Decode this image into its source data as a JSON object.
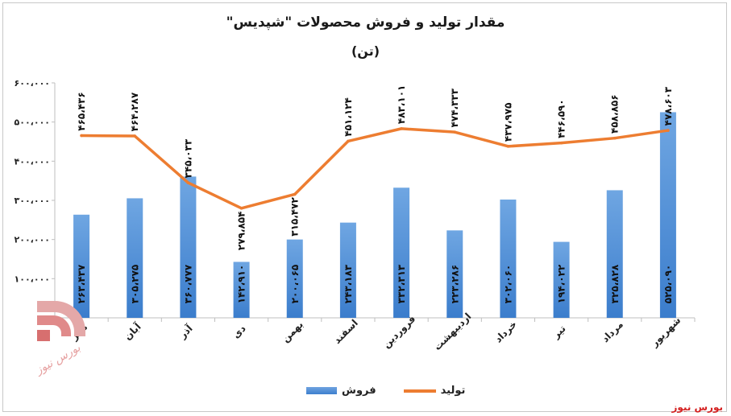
{
  "title": "مقدار تولید و فروش محصولات \"شپدیس\"",
  "subtitle": "(تن)",
  "source": "بورس نیوز",
  "colors": {
    "sales": "#4a8ad6",
    "production": "#ed7d31"
  },
  "chart_data": {
    "type": "bar",
    "title": "مقدار تولید و فروش محصولات \"شپدیس\"",
    "subtitle": "(تن)",
    "categories": [
      "مهر",
      "آبان",
      "آذر",
      "دی",
      "بهمن",
      "اسفند",
      "فروردین",
      "اردیبهشت",
      "خرداد",
      "تیر",
      "مرداد",
      "شهریور"
    ],
    "ylim": [
      0,
      600000
    ],
    "yticks": [
      100000,
      200000,
      300000,
      400000,
      500000,
      600000
    ],
    "ytick_labels": [
      "۱۰۰،۰۰۰",
      "۲۰۰،۰۰۰",
      "۳۰۰،۰۰۰",
      "۴۰۰،۰۰۰",
      "۵۰۰،۰۰۰",
      "۶۰۰،۰۰۰"
    ],
    "grid": false,
    "legend": "bottom",
    "series": [
      {
        "name": "فروش",
        "type": "bar",
        "values": [
          263437,
          305275,
          360777,
          142910,
          200065,
          243183,
          332313,
          223286,
          302060,
          194022,
          325828,
          525090
        ],
        "labels": [
          "۲۶۳،۴۳۷",
          "۳۰۵،۲۷۵",
          "۳۶۰،۷۷۷",
          "۱۴۲،۹۱۰",
          "۲۰۰،۰۶۵",
          "۲۴۳،۱۸۳",
          "۳۳۲،۳۱۳",
          "۲۲۳،۲۸۶",
          "۳۰۲،۰۶۰",
          "۱۹۴،۰۲۲",
          "۳۲۵،۸۲۸",
          "۵۲۵،۰۹۰"
        ]
      },
      {
        "name": "تولید",
        "type": "line",
        "values": [
          465436,
          464287,
          345033,
          279854,
          315472,
          451124,
          483101,
          474333,
          437975,
          446590,
          458856,
          478603
        ],
        "labels": [
          "۴۶۵،۴۳۶",
          "۴۶۴،۲۸۷",
          "۳۴۵،۰۳۳",
          "۲۷۹،۸۵۴",
          "۳۱۵،۴۷۲",
          "۴۵۱،۱۲۴",
          "۴۸۳،۱۰۱",
          "۴۷۴،۳۳۳",
          "۴۳۷،۹۷۵",
          "۴۴۶،۵۹۰",
          "۴۵۸،۸۵۶",
          "۴۷۸،۶۰۳"
        ]
      }
    ]
  }
}
